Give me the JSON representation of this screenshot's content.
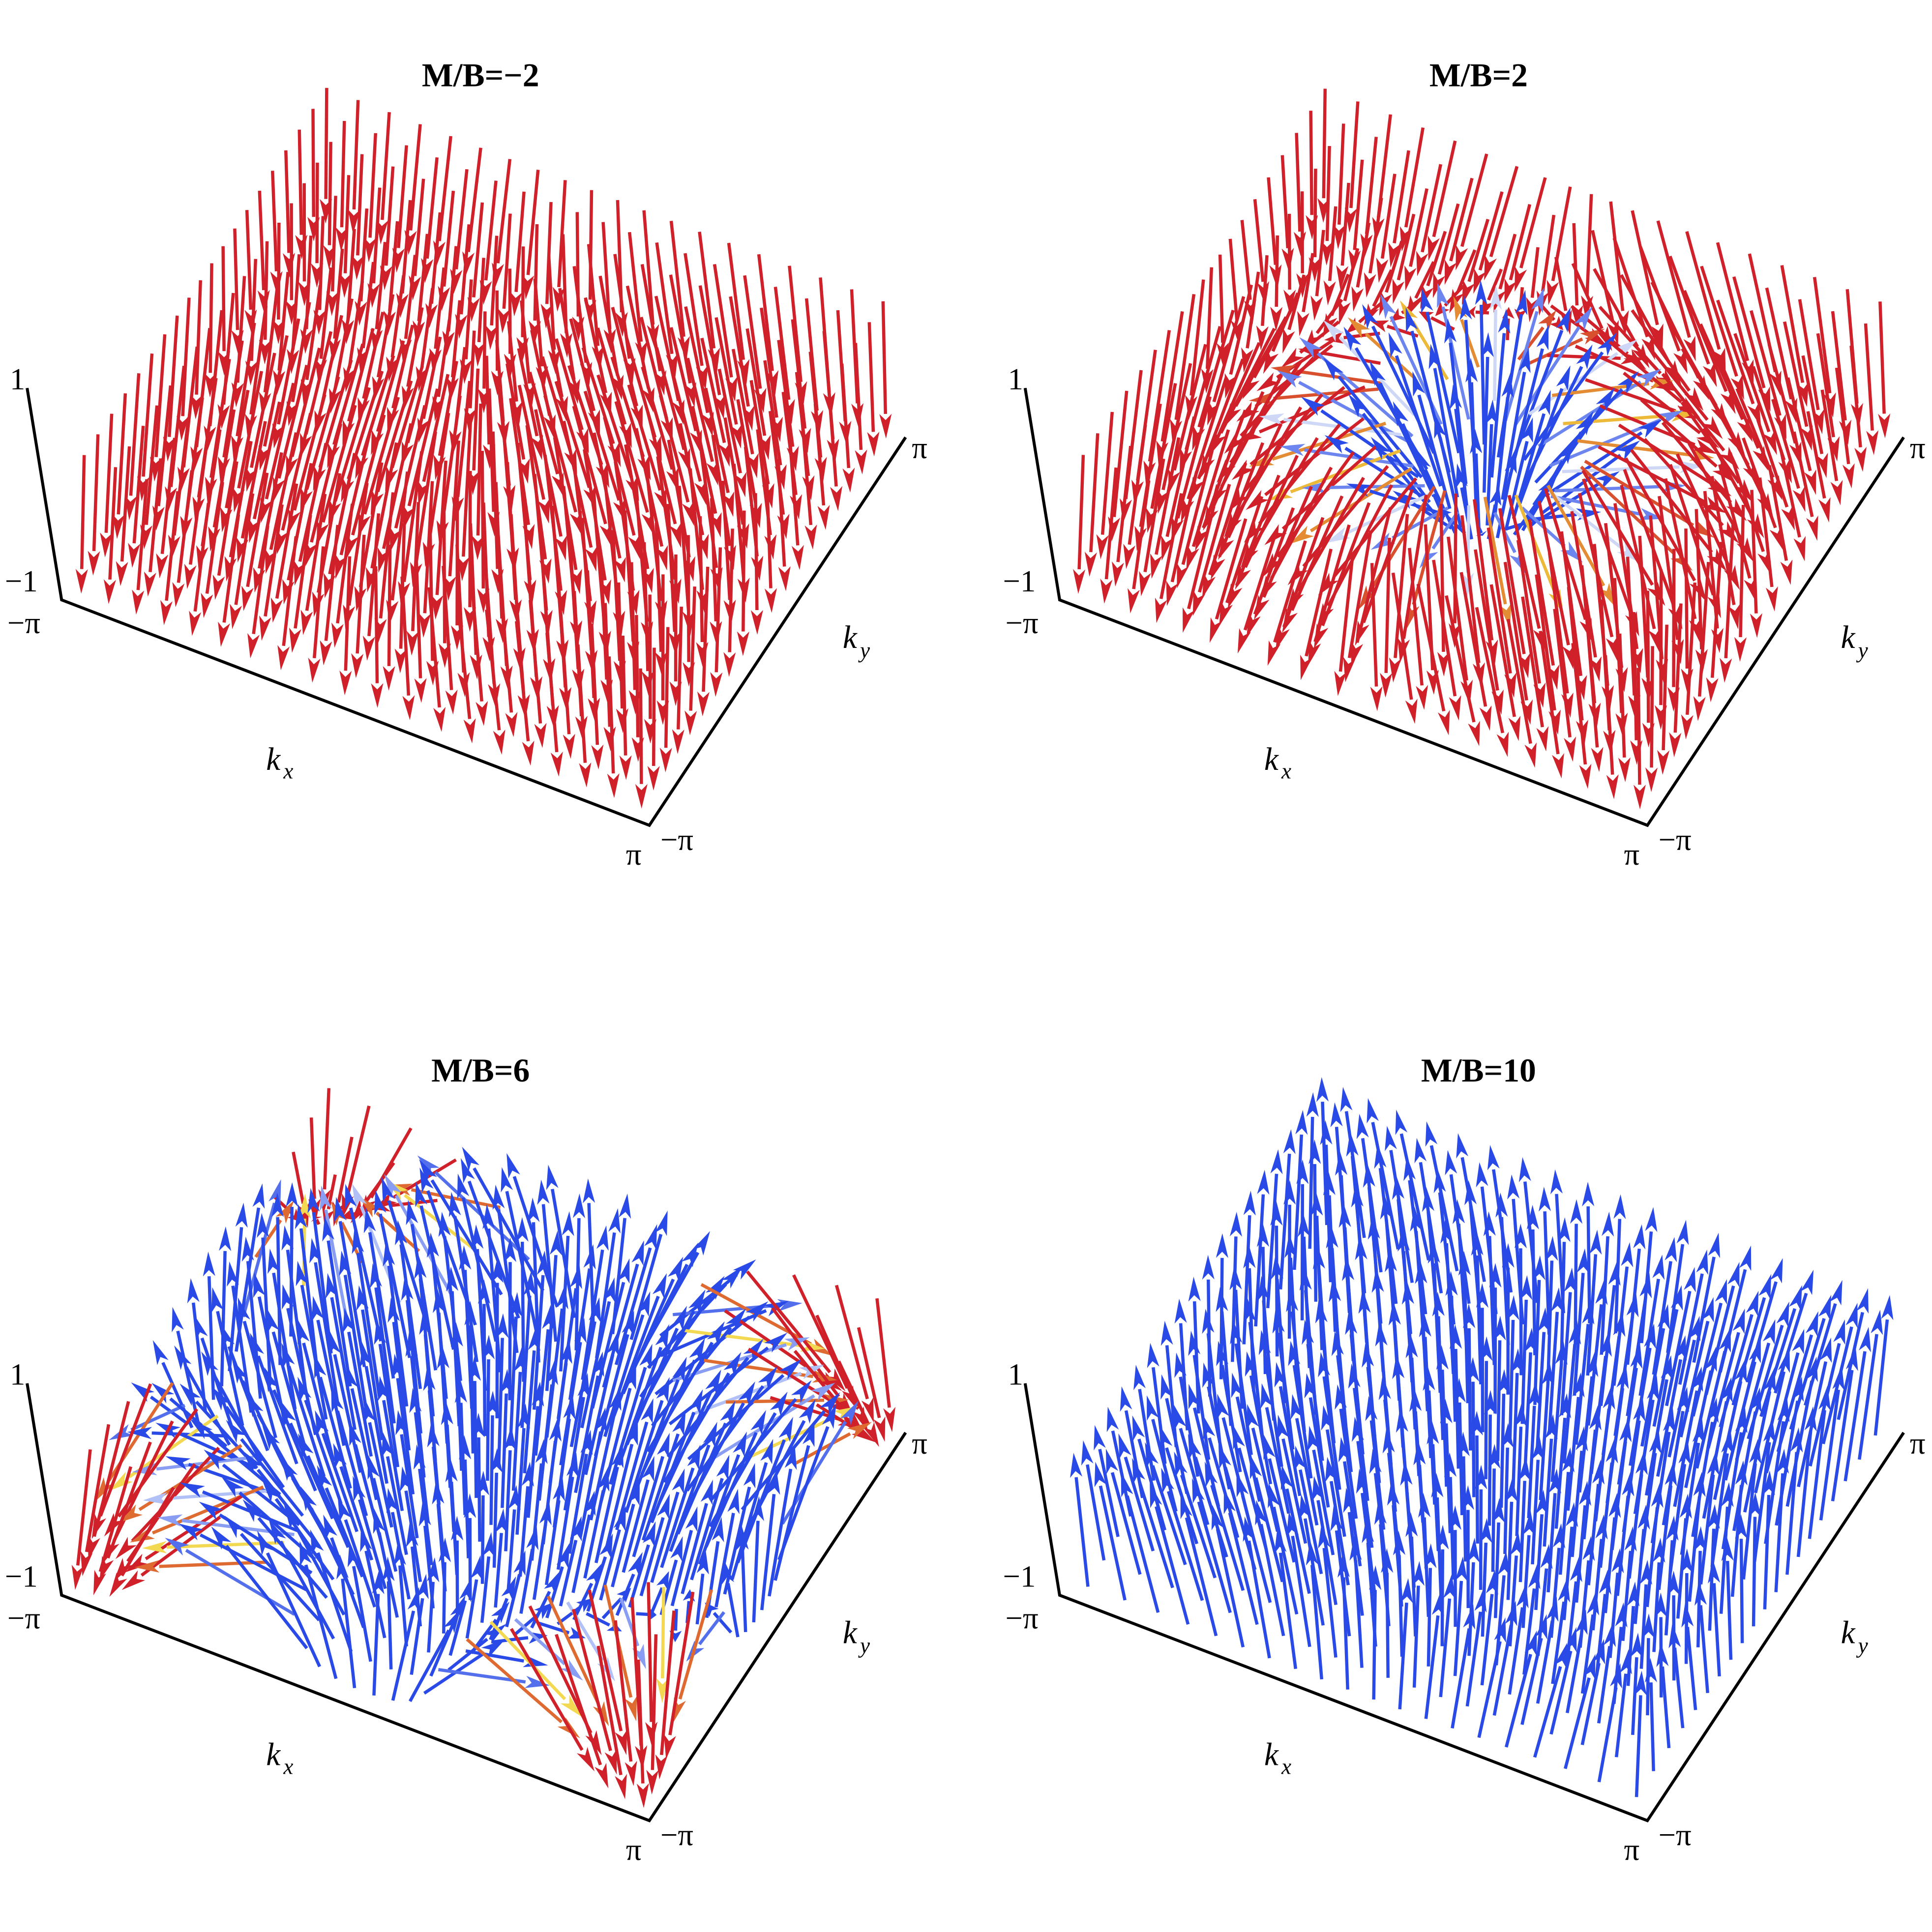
{
  "chart_data": [
    {
      "type": "vector3d",
      "title": "M/B=−2",
      "m_over_b": -2,
      "xlabel": "k",
      "xlabel_sub": "x",
      "ylabel": "k",
      "ylabel_sub": "y",
      "xlim": [
        -3.1416,
        3.1416
      ],
      "ylim": [
        -3.1416,
        3.1416
      ],
      "zlim": [
        -1,
        1
      ],
      "x_ticks": [
        "−π",
        "π"
      ],
      "y_ticks": [
        "−π",
        "π"
      ],
      "z_ticks": [
        "−1",
        "1"
      ],
      "dominant_color": "#d0202a"
    },
    {
      "type": "vector3d",
      "title": "M/B=2",
      "m_over_b": 2,
      "xlabel": "k",
      "xlabel_sub": "x",
      "ylabel": "k",
      "ylabel_sub": "y",
      "xlim": [
        -3.1416,
        3.1416
      ],
      "ylim": [
        -3.1416,
        3.1416
      ],
      "zlim": [
        -1,
        1
      ],
      "x_ticks": [
        "−π",
        "π"
      ],
      "y_ticks": [
        "−π",
        "π"
      ],
      "z_ticks": [
        "−1",
        "1"
      ],
      "dominant_color": "#d0202a"
    },
    {
      "type": "vector3d",
      "title": "M/B=6",
      "m_over_b": 6,
      "xlabel": "k",
      "xlabel_sub": "x",
      "ylabel": "k",
      "ylabel_sub": "y",
      "xlim": [
        -3.1416,
        3.1416
      ],
      "ylim": [
        -3.1416,
        3.1416
      ],
      "zlim": [
        -1,
        1
      ],
      "x_ticks": [
        "−π",
        "π"
      ],
      "y_ticks": [
        "−π",
        "π"
      ],
      "z_ticks": [
        "−1",
        "1"
      ],
      "dominant_color": "#2a4ae8"
    },
    {
      "type": "vector3d",
      "title": "M/B=10",
      "m_over_b": 10,
      "xlabel": "k",
      "xlabel_sub": "x",
      "ylabel": "k",
      "ylabel_sub": "y",
      "xlim": [
        -3.1416,
        3.1416
      ],
      "ylim": [
        -3.1416,
        3.1416
      ],
      "zlim": [
        -1,
        1
      ],
      "x_ticks": [
        "−π",
        "π"
      ],
      "y_ticks": [
        "−π",
        "π"
      ],
      "z_ticks": [
        "−1",
        "1"
      ],
      "dominant_color": "#2a4ae8"
    }
  ],
  "color_scale": {
    "down": "#d0202a",
    "in_plane_down": "#f2d43a",
    "in_plane": "#f6f6e8",
    "in_plane_up": "#c8d4f8",
    "up": "#2a4ae8"
  }
}
